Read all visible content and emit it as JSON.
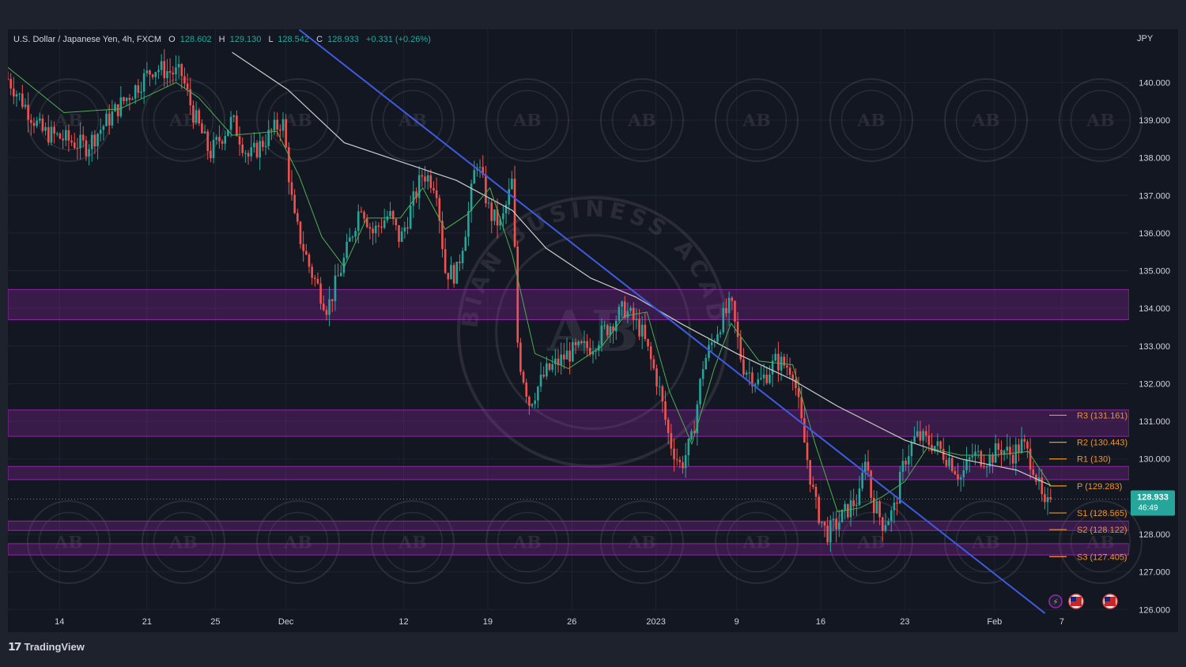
{
  "header": {
    "symbol": "U.S. Dollar / Japanese Yen, 4h, FXCM",
    "open_label": "O",
    "open": "128.602",
    "high_label": "H",
    "high": "129.130",
    "low_label": "L",
    "low": "128.542",
    "close_label": "C",
    "close": "128.933",
    "change": "+0.331 (+0.26%)"
  },
  "currency_label": "JPY",
  "price_tag": {
    "price": "128.933",
    "countdown": "46:49"
  },
  "footer": {
    "brand": "TradingView"
  },
  "watermark": {
    "ring_text": "ARABIAN BUSINESS ACADEMY",
    "monogram": "AB"
  },
  "colors": {
    "background": "#131722",
    "up": "#26a69a",
    "down": "#ef5350",
    "zone": "#9c27b0",
    "trendline": "#3f5be0",
    "ma_fast": "#4caf50",
    "ma_slow": "#c8cfc8",
    "pivot": "#f0932b"
  },
  "chart_data": {
    "type": "candlestick",
    "symbol": "USDJPY",
    "timeframe": "4h",
    "y_range": [
      126.0,
      141.0
    ],
    "y_ticks": [
      "140.000",
      "139.000",
      "138.000",
      "137.000",
      "136.000",
      "135.000",
      "134.000",
      "133.000",
      "132.000",
      "131.000",
      "130.000",
      "128.000",
      "127.000",
      "126.000"
    ],
    "x_ticks": [
      "14",
      "21",
      "25",
      "Dec",
      "12",
      "19",
      "26",
      "2023",
      "9",
      "16",
      "23",
      "Feb",
      "7"
    ],
    "x_tick_pos": [
      0.046,
      0.124,
      0.185,
      0.248,
      0.353,
      0.428,
      0.503,
      0.578,
      0.65,
      0.725,
      0.8,
      0.88,
      0.94
    ],
    "path": [
      [
        0,
        140.1
      ],
      [
        0.03,
        138.7
      ],
      [
        0.07,
        138.3
      ],
      [
        0.1,
        139.4
      ],
      [
        0.13,
        140.4
      ],
      [
        0.155,
        140.2
      ],
      [
        0.165,
        139.2
      ],
      [
        0.175,
        138.5
      ],
      [
        0.18,
        138.1
      ],
      [
        0.2,
        139.0
      ],
      [
        0.215,
        138.0
      ],
      [
        0.23,
        138.5
      ],
      [
        0.245,
        139.0
      ],
      [
        0.255,
        136.4
      ],
      [
        0.27,
        135.0
      ],
      [
        0.285,
        134.0
      ],
      [
        0.3,
        135.3
      ],
      [
        0.315,
        136.8
      ],
      [
        0.325,
        136.0
      ],
      [
        0.34,
        136.5
      ],
      [
        0.35,
        135.8
      ],
      [
        0.37,
        137.6
      ],
      [
        0.382,
        137.3
      ],
      [
        0.39,
        135.0
      ],
      [
        0.4,
        134.9
      ],
      [
        0.41,
        136.4
      ],
      [
        0.418,
        138.0
      ],
      [
        0.43,
        136.5
      ],
      [
        0.44,
        136.2
      ],
      [
        0.45,
        137.4
      ],
      [
        0.455,
        132.8
      ],
      [
        0.465,
        131.5
      ],
      [
        0.48,
        132.3
      ],
      [
        0.5,
        132.8
      ],
      [
        0.52,
        133.0
      ],
      [
        0.535,
        133.5
      ],
      [
        0.55,
        134.0
      ],
      [
        0.565,
        133.4
      ],
      [
        0.58,
        132.0
      ],
      [
        0.59,
        130.5
      ],
      [
        0.6,
        129.8
      ],
      [
        0.61,
        130.5
      ],
      [
        0.62,
        132.5
      ],
      [
        0.635,
        133.6
      ],
      [
        0.645,
        134.1
      ],
      [
        0.655,
        132.5
      ],
      [
        0.67,
        132.0
      ],
      [
        0.685,
        132.6
      ],
      [
        0.7,
        132.4
      ],
      [
        0.71,
        130.5
      ],
      [
        0.72,
        128.8
      ],
      [
        0.73,
        128.0
      ],
      [
        0.74,
        128.3
      ],
      [
        0.75,
        128.7
      ],
      [
        0.76,
        129.0
      ],
      [
        0.765,
        130.2
      ],
      [
        0.77,
        129.0
      ],
      [
        0.78,
        128.3
      ],
      [
        0.79,
        128.6
      ],
      [
        0.8,
        130.0
      ],
      [
        0.81,
        130.6
      ],
      [
        0.825,
        130.4
      ],
      [
        0.84,
        130.0
      ],
      [
        0.85,
        129.5
      ],
      [
        0.86,
        130.1
      ],
      [
        0.875,
        130.0
      ],
      [
        0.885,
        130.3
      ],
      [
        0.895,
        130.1
      ],
      [
        0.905,
        130.4
      ],
      [
        0.915,
        129.8
      ],
      [
        0.925,
        128.6
      ],
      [
        0.93,
        128.9
      ]
    ],
    "ma_fast": [
      [
        0,
        140.4
      ],
      [
        0.05,
        139.2
      ],
      [
        0.1,
        139.3
      ],
      [
        0.15,
        140.0
      ],
      [
        0.17,
        139.6
      ],
      [
        0.2,
        138.6
      ],
      [
        0.24,
        138.7
      ],
      [
        0.26,
        137.5
      ],
      [
        0.28,
        135.9
      ],
      [
        0.3,
        135.1
      ],
      [
        0.32,
        136.4
      ],
      [
        0.35,
        136.4
      ],
      [
        0.37,
        137.2
      ],
      [
        0.39,
        136.1
      ],
      [
        0.41,
        136.5
      ],
      [
        0.43,
        137.2
      ],
      [
        0.45,
        135.4
      ],
      [
        0.47,
        132.8
      ],
      [
        0.5,
        132.4
      ],
      [
        0.53,
        133.0
      ],
      [
        0.55,
        133.8
      ],
      [
        0.57,
        133.9
      ],
      [
        0.59,
        131.8
      ],
      [
        0.61,
        130.4
      ],
      [
        0.63,
        132.4
      ],
      [
        0.645,
        133.6
      ],
      [
        0.67,
        132.6
      ],
      [
        0.7,
        132.5
      ],
      [
        0.72,
        130.4
      ],
      [
        0.74,
        128.6
      ],
      [
        0.76,
        128.7
      ],
      [
        0.78,
        129.0
      ],
      [
        0.8,
        129.4
      ],
      [
        0.82,
        130.3
      ],
      [
        0.85,
        130.1
      ],
      [
        0.88,
        130.1
      ],
      [
        0.91,
        130.2
      ],
      [
        0.93,
        129.3
      ]
    ],
    "ma_slow": [
      [
        0.2,
        140.8
      ],
      [
        0.25,
        139.8
      ],
      [
        0.3,
        138.4
      ],
      [
        0.35,
        137.9
      ],
      [
        0.4,
        137.4
      ],
      [
        0.45,
        136.6
      ],
      [
        0.48,
        135.6
      ],
      [
        0.52,
        134.8
      ],
      [
        0.56,
        134.3
      ],
      [
        0.6,
        133.6
      ],
      [
        0.65,
        132.8
      ],
      [
        0.7,
        132.1
      ],
      [
        0.74,
        131.4
      ],
      [
        0.78,
        130.8
      ],
      [
        0.8,
        130.5
      ],
      [
        0.85,
        130.0
      ],
      [
        0.9,
        129.7
      ],
      [
        0.93,
        129.3
      ]
    ],
    "trendline": {
      "from": [
        0.26,
        141.4
      ],
      "to": [
        0.925,
        125.9
      ]
    },
    "zones": [
      [
        133.7,
        134.5
      ],
      [
        130.6,
        131.3
      ],
      [
        129.45,
        129.8
      ],
      [
        128.1,
        128.35
      ],
      [
        127.45,
        127.75
      ]
    ],
    "pivots": [
      {
        "label": "R3 (131.161)",
        "value": 131.161
      },
      {
        "label": "R2 (130.443)",
        "value": 130.443
      },
      {
        "label": "R1 (130)",
        "value": 130.0
      },
      {
        "label": "P (129.283)",
        "value": 129.283
      },
      {
        "label": "S1 (128.565)",
        "value": 128.565
      },
      {
        "label": "S2 (128.122)",
        "value": 128.122
      },
      {
        "label": "S3 (127.405)",
        "value": 127.405
      }
    ],
    "current_price": 128.933
  }
}
